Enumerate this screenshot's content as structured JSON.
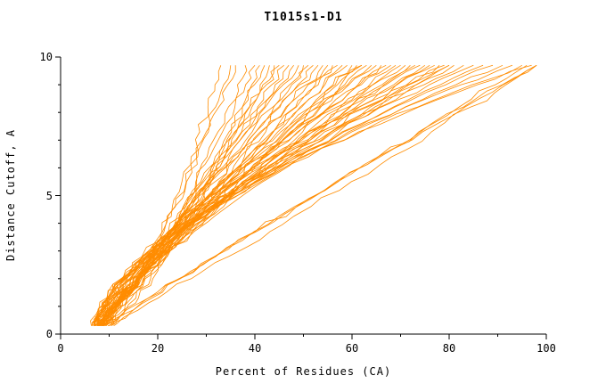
{
  "chart_data": {
    "type": "line",
    "title": "T1015s1-D1",
    "xlabel": "Percent of Residues (CA)",
    "ylabel": "Distance Cutoff, A",
    "xlim": [
      0,
      100
    ],
    "ylim": [
      0,
      10
    ],
    "x_ticks": [
      0,
      20,
      40,
      60,
      80,
      100
    ],
    "x_minor_step": 10,
    "y_ticks": [
      0,
      5,
      10
    ],
    "y_minor_step": 1,
    "grid": false,
    "legend": null,
    "line_color": "#ff8c00",
    "axis_color": "#000000",
    "y_levels": [
      0.3,
      0.7,
      1.3,
      2.0,
      2.8,
      3.7,
      4.6,
      5.5,
      6.4,
      7.3,
      8.2,
      9.0,
      9.7
    ],
    "series_format": "[x_start_percent, x_end_percent, shape_exponent]; curve x at level y = x_start + (y/9.7)^p * (x_end - x_start)",
    "series": [
      [
        6,
        33,
        0.62
      ],
      [
        6.5,
        35,
        0.68
      ],
      [
        6,
        36,
        0.72
      ],
      [
        7,
        38,
        0.7
      ],
      [
        6.5,
        40,
        0.78
      ],
      [
        7,
        41,
        0.66
      ],
      [
        6,
        42,
        0.8
      ],
      [
        7.5,
        43,
        0.74
      ],
      [
        6,
        44,
        0.85
      ],
      [
        7,
        45,
        0.95
      ],
      [
        6.5,
        46,
        0.88
      ],
      [
        8,
        47,
        1.0
      ],
      [
        6,
        48,
        0.92
      ],
      [
        7,
        49,
        1.05
      ],
      [
        6.5,
        50,
        0.9
      ],
      [
        8,
        51,
        1.1
      ],
      [
        6,
        52,
        0.95
      ],
      [
        7,
        53,
        1.15
      ],
      [
        6.5,
        54,
        1.0
      ],
      [
        8,
        55,
        1.2
      ],
      [
        6,
        56,
        0.98
      ],
      [
        7,
        57,
        1.1
      ],
      [
        6.5,
        58,
        1.05
      ],
      [
        8,
        59,
        1.25
      ],
      [
        6,
        60,
        1.0
      ],
      [
        7,
        61,
        1.15
      ],
      [
        6.5,
        62,
        1.08
      ],
      [
        8,
        62,
        1.3
      ],
      [
        6,
        63,
        1.1
      ],
      [
        7,
        64,
        1.2
      ],
      [
        6.5,
        65,
        1.35
      ],
      [
        8,
        66,
        1.15
      ],
      [
        6,
        67,
        1.25
      ],
      [
        7,
        68,
        1.4
      ],
      [
        6.5,
        69,
        1.2
      ],
      [
        8,
        70,
        1.3
      ],
      [
        6,
        71,
        1.45
      ],
      [
        7,
        72,
        1.25
      ],
      [
        6.5,
        73,
        1.35
      ],
      [
        8,
        74,
        1.5
      ],
      [
        6,
        75,
        1.3
      ],
      [
        7,
        76,
        1.4
      ],
      [
        6.5,
        77,
        1.55
      ],
      [
        8,
        78,
        1.35
      ],
      [
        6,
        79,
        1.45
      ],
      [
        7,
        80,
        1.6
      ],
      [
        6.5,
        80,
        1.3
      ],
      [
        8,
        81,
        1.5
      ],
      [
        6,
        83,
        1.5
      ],
      [
        7,
        85,
        1.65
      ],
      [
        6.5,
        87,
        1.55
      ],
      [
        8,
        89,
        1.7
      ],
      [
        6,
        91,
        1.6
      ],
      [
        7,
        93,
        1.75
      ],
      [
        6.5,
        95,
        1.65
      ],
      [
        8,
        97,
        1.8
      ],
      [
        6,
        96,
        1.0
      ],
      [
        7,
        98,
        1.05
      ],
      [
        6.5,
        98,
        0.95
      ],
      [
        9,
        98,
        1.1
      ]
    ]
  }
}
